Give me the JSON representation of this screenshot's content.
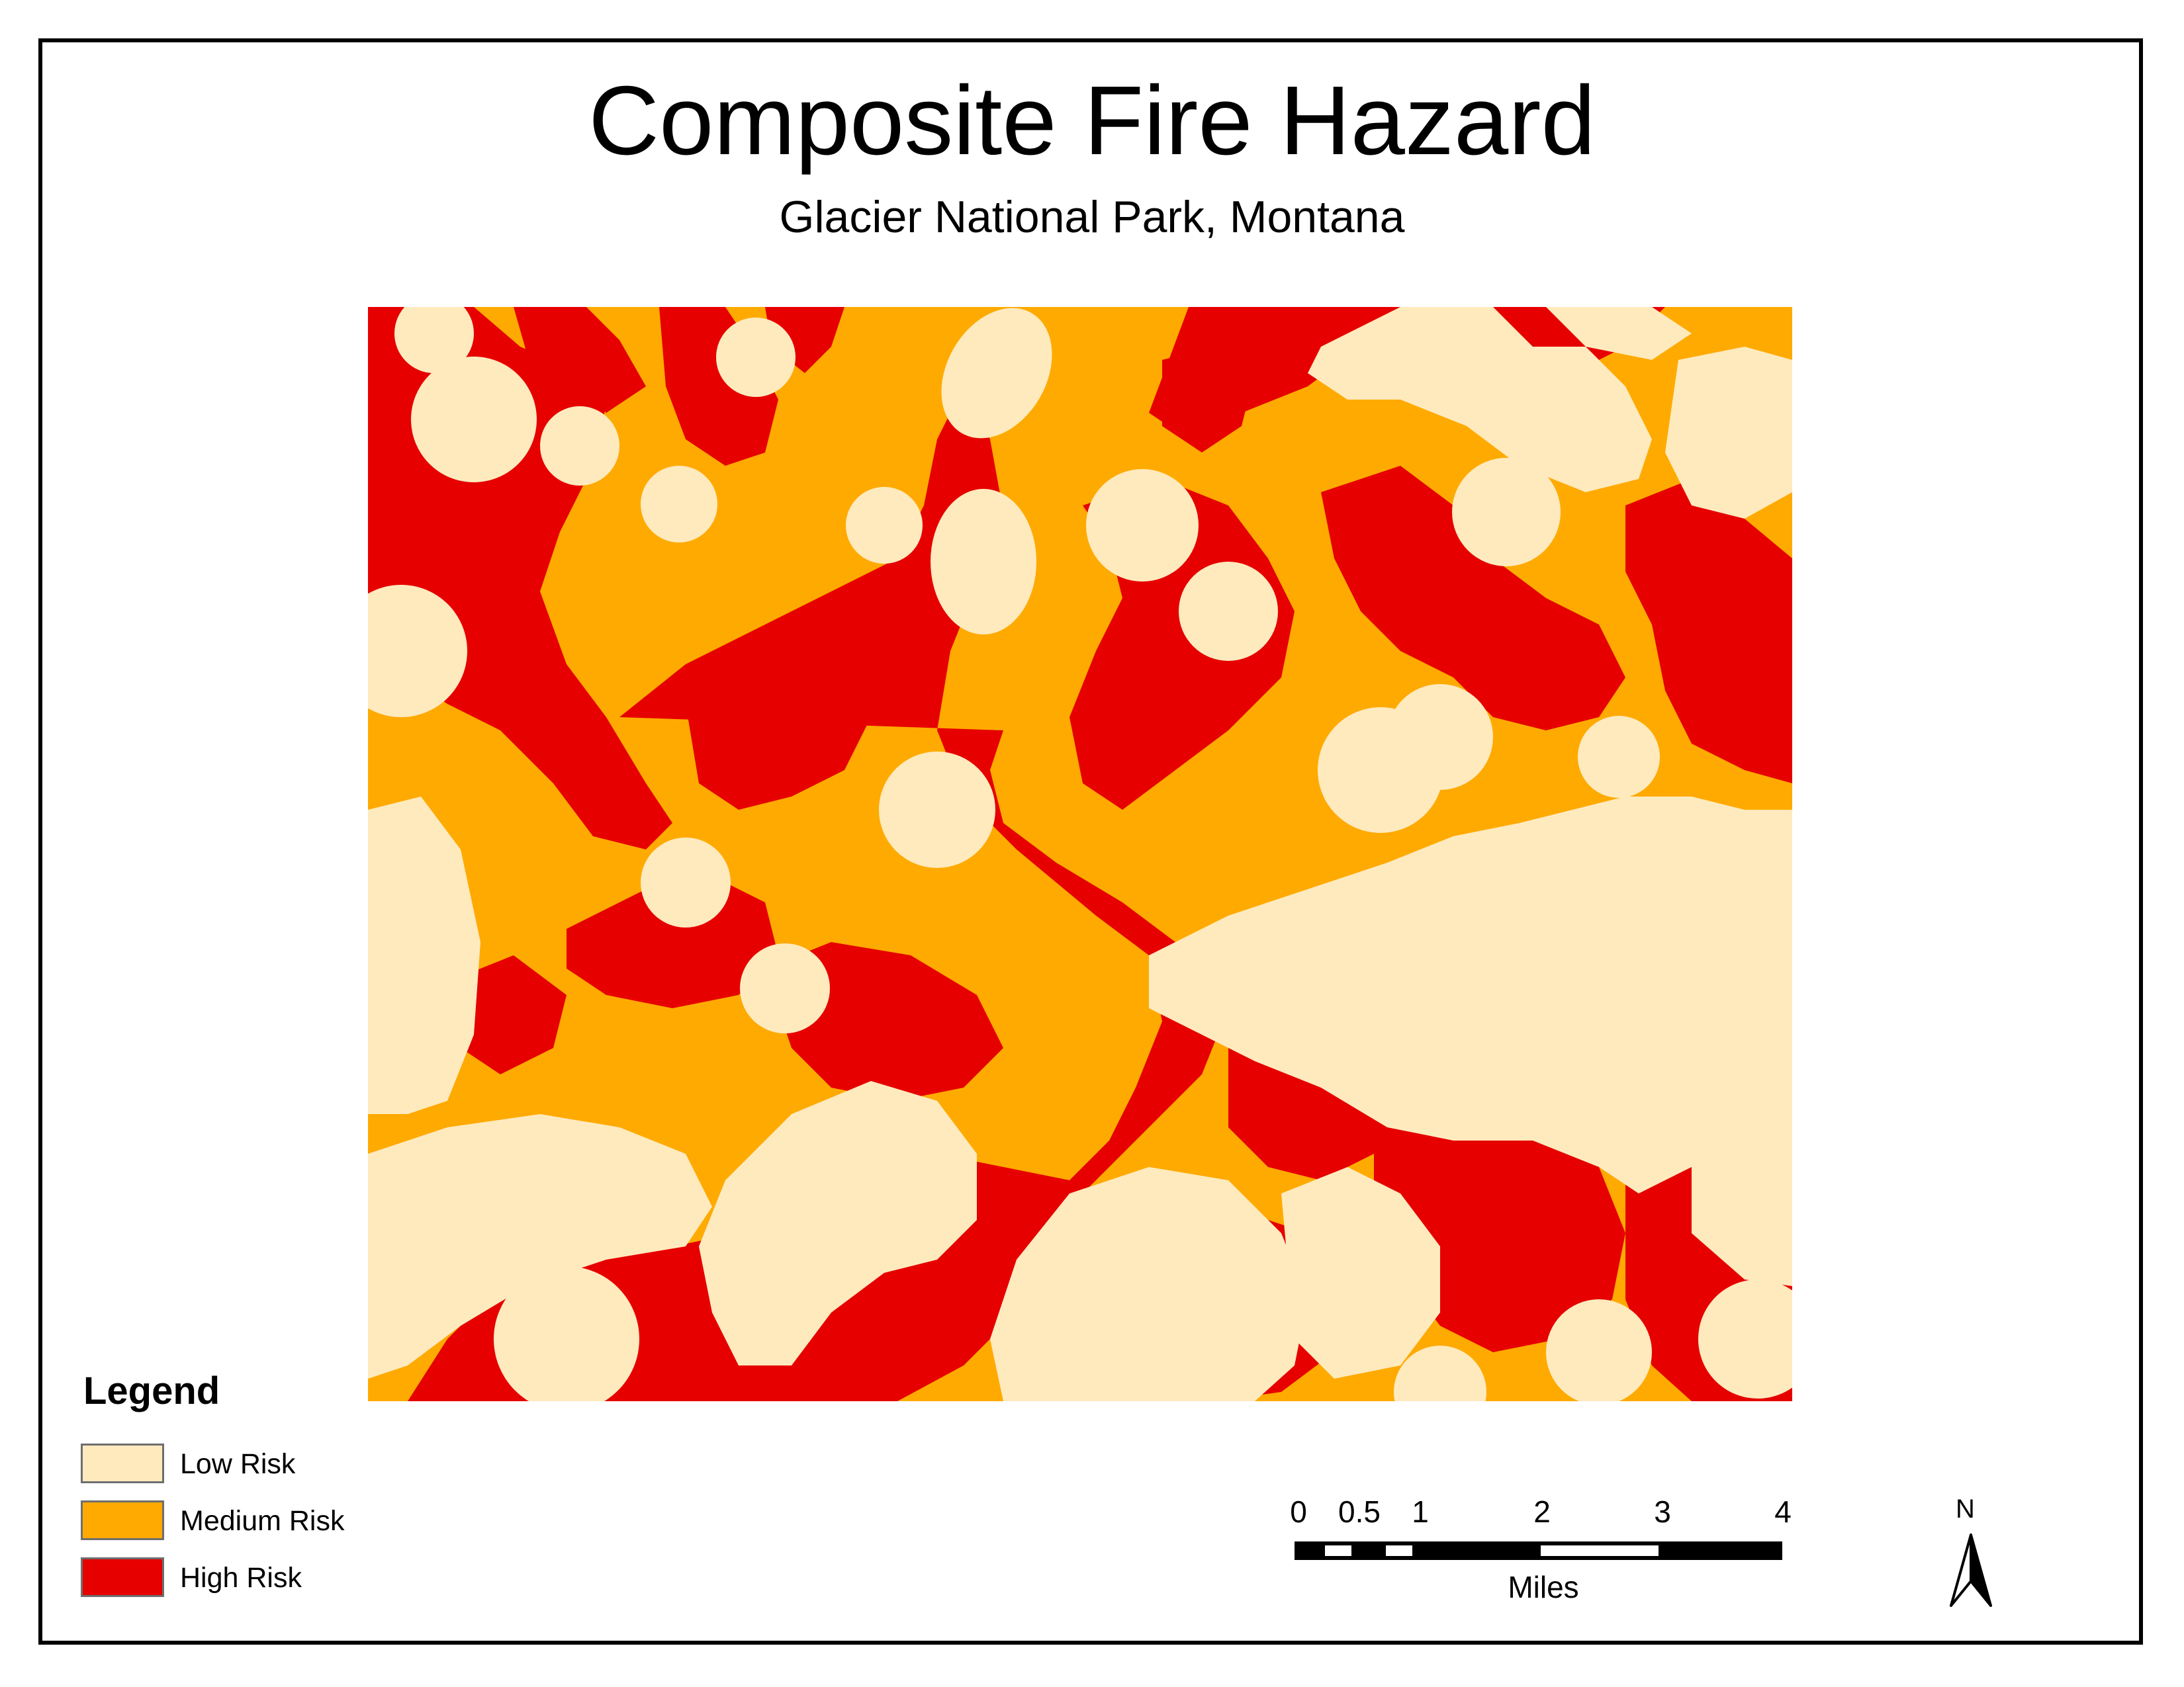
{
  "title": "Composite Fire Hazard",
  "subtitle": "Glacier National Park, Montana",
  "colors": {
    "low": "#ffeabe",
    "medium": "#ffaa00",
    "high": "#e60000",
    "frame": "#000000"
  },
  "legend": {
    "title": "Legend",
    "items": [
      {
        "label": "Low Risk",
        "color": "#ffeabe"
      },
      {
        "label": "Medium Risk",
        "color": "#ffaa00"
      },
      {
        "label": "High Risk",
        "color": "#e60000"
      }
    ]
  },
  "scale_bar": {
    "ticks": [
      "0",
      "0.5",
      "1",
      "2",
      "3",
      "4"
    ],
    "units": "Miles"
  },
  "north_arrow": {
    "label": "N",
    "icon": "north-arrow-icon"
  }
}
